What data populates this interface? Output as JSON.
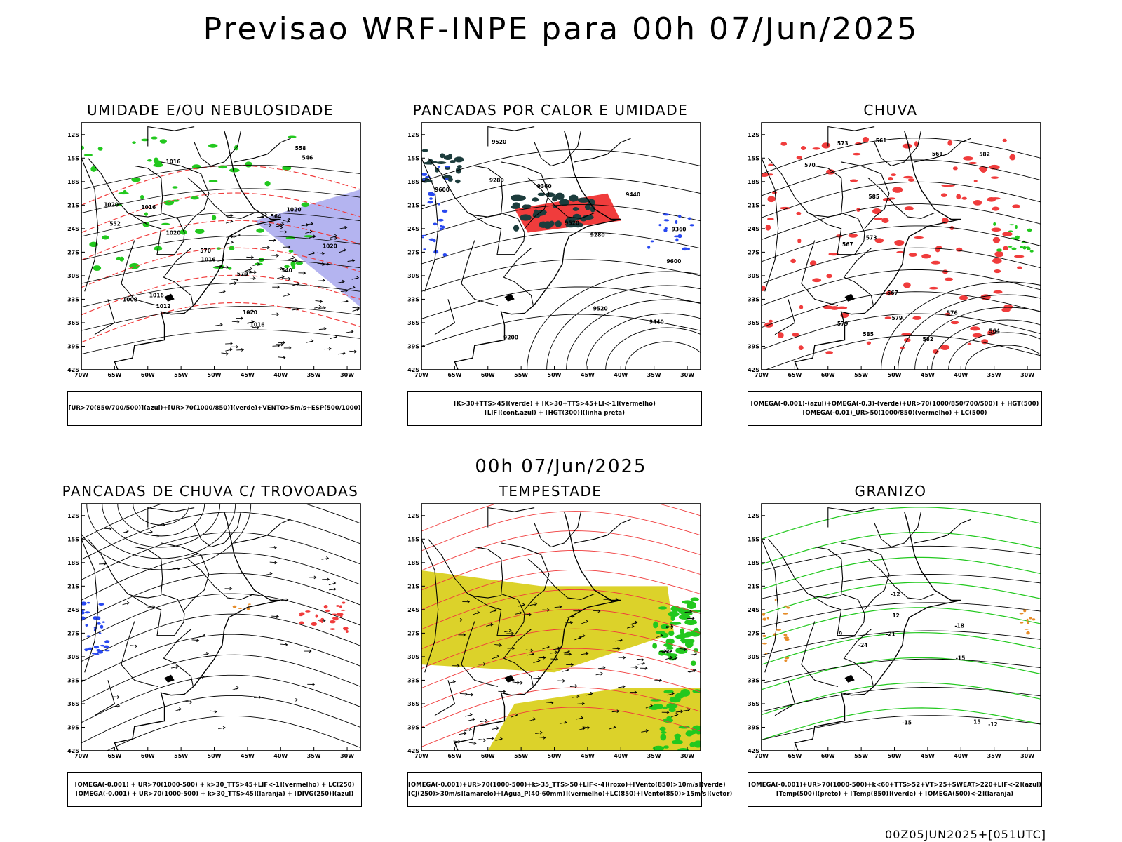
{
  "title": "Previsao WRF-INPE  para 00h 07/Jun/2025",
  "mid_title": "00h 07/Jun/2025",
  "footer": "00Z05JUN2025+[051UTC]",
  "axes": {
    "lat_labels": [
      "12S",
      "15S",
      "18S",
      "21S",
      "24S",
      "27S",
      "30S",
      "33S",
      "36S",
      "39S",
      "42S"
    ],
    "lon_labels": [
      "70W",
      "65W",
      "60W",
      "55W",
      "50W",
      "45W",
      "40W",
      "35W",
      "30W"
    ]
  },
  "panels": [
    {
      "title": "UMIDADE E/OU NEBULOSIDADE",
      "legend": [
        "[UR>70(850/700/500)](azul)+[UR>70(1000/850)](verde)+VENTO>5m/s+ESP(500/1000)"
      ],
      "contour_labels": [
        "1016",
        "1016",
        "1016",
        "1016",
        "1020",
        "1020",
        "1020",
        "1020",
        "1016",
        "1012",
        "1008",
        "1020",
        "570",
        "570",
        "564",
        "558",
        "552",
        "546",
        "540"
      ]
    },
    {
      "title": "PANCADAS POR CALOR E UMIDADE",
      "legend": [
        "[K>30+TTS>45](verde) + [K>30+TTS>45+LI<-1](vermelho)",
        "[LIF](cont.azul) + [HGT(300)](linha preta)"
      ],
      "contour_labels": [
        "9600",
        "9520",
        "9440",
        "9360",
        "9280",
        "9200",
        "9520",
        "9440",
        "9360",
        "9280",
        "9600",
        "9520"
      ]
    },
    {
      "title": "CHUVA",
      "legend": [
        "[OMEGA(-0.001)-(azul)+OMEGA(-0.3)-(verde)+UR>70(1000/850/700/500)] + HGT(500)",
        "[OMEGA(-0.01)_UR>50(1000/850)(vermelho) + LC(500)"
      ],
      "contour_labels": [
        "585",
        "582",
        "579",
        "576",
        "573",
        "570",
        "567",
        "564",
        "561",
        "585",
        "582",
        "579",
        "573",
        "567",
        "561"
      ]
    },
    {
      "title": "PANCADAS DE CHUVA C/ TROVOADAS",
      "legend": [
        "[OMEGA(-0.001) + UR>70(1000-500) + k>30_TTS>45+LIF<-1](vermelho) + LC(250)",
        "[OMEGA(-0.001) + UR>70(1000-500) + k>30_TTS>45](laranja) + [DIVG(250)](azul)"
      ],
      "contour_labels": []
    },
    {
      "title": "TEMPESTADE",
      "legend": [
        "[OMEGA(-0.001)+UR>70(1000-500)+k>35_TTS>50+LIF<-4](roxo)+[Vento(850)>10m/s](verde)",
        "[CJ(250)>30m/s](amarelo)+[Agua_P(40-60mm)](vermelho)+LC(850)+[Vento(850)>15m/s](vetor)"
      ],
      "contour_labels": []
    },
    {
      "title": "GRANIZO",
      "legend": [
        "[OMEGA(-0.001)+UR>70(1000-500)+k<60+TTS>52+VT>25+SWEAT>220+LIF<-2](azul)",
        "[Temp(500)](preto) + [Temp(850)](verde) + [OMEGA(500)<-2](laranja)"
      ],
      "contour_labels": [
        "-12",
        "-12",
        "-15",
        "-15",
        "-18",
        "-21",
        "-24",
        "12",
        "15",
        "9"
      ]
    }
  ],
  "colors": {
    "black": "#000000",
    "green": "#22c81e",
    "red": "#f03c3c",
    "blue": "#2848f0",
    "lavender": "#b4b4f0",
    "yellow": "#dcd22a",
    "darkteal": "#1c3c3c",
    "orange": "#e68c28"
  }
}
